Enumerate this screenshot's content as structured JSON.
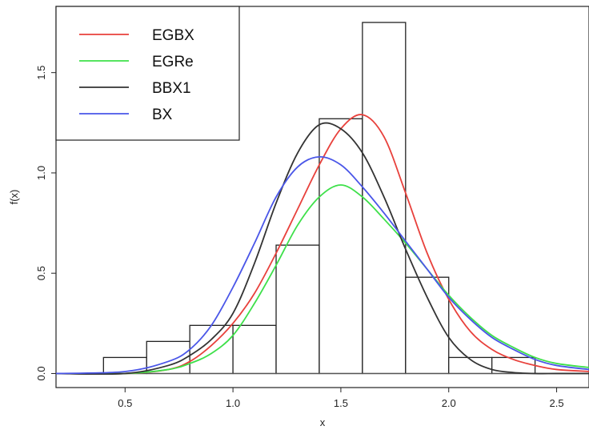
{
  "chart_data": {
    "type": "histogram-with-density-curves",
    "xlabel": "x",
    "ylabel": "f(x)",
    "xlim": [
      0.18,
      2.65
    ],
    "ylim": [
      -0.07,
      1.83
    ],
    "x_ticks": [
      0.5,
      1.0,
      1.5,
      2.0,
      2.5
    ],
    "x_tick_labels": [
      "0.5",
      "1.0",
      "1.5",
      "2.0",
      "2.5"
    ],
    "y_ticks": [
      0.0,
      0.5,
      1.0,
      1.5
    ],
    "y_tick_labels": [
      "0.0",
      "0.5",
      "1.0",
      "1.5"
    ],
    "grid": false,
    "legend_position": "top-left",
    "histogram": {
      "bins": [
        {
          "x0": 0.4,
          "x1": 0.6,
          "density": 0.08
        },
        {
          "x0": 0.6,
          "x1": 0.8,
          "density": 0.16
        },
        {
          "x0": 0.8,
          "x1": 1.0,
          "density": 0.24
        },
        {
          "x0": 1.0,
          "x1": 1.2,
          "density": 0.24
        },
        {
          "x0": 1.2,
          "x1": 1.4,
          "density": 0.64
        },
        {
          "x0": 1.4,
          "x1": 1.6,
          "density": 1.27
        },
        {
          "x0": 1.6,
          "x1": 1.8,
          "density": 1.75
        },
        {
          "x0": 1.8,
          "x1": 2.0,
          "density": 0.48
        },
        {
          "x0": 2.0,
          "x1": 2.2,
          "density": 0.08
        },
        {
          "x0": 2.2,
          "x1": 2.4,
          "density": 0.08
        }
      ]
    },
    "series": [
      {
        "name": "EGBX",
        "color": "#e8413c",
        "x": [
          0.18,
          0.5,
          0.7,
          0.8,
          0.9,
          1.0,
          1.1,
          1.2,
          1.3,
          1.4,
          1.5,
          1.6,
          1.7,
          1.8,
          1.9,
          2.0,
          2.1,
          2.2,
          2.3,
          2.4,
          2.5,
          2.65
        ],
        "y": [
          0.0,
          0.0,
          0.02,
          0.06,
          0.14,
          0.25,
          0.4,
          0.6,
          0.82,
          1.04,
          1.22,
          1.29,
          1.18,
          0.9,
          0.6,
          0.37,
          0.21,
          0.12,
          0.07,
          0.04,
          0.02,
          0.01
        ]
      },
      {
        "name": "EGRe",
        "color": "#3ee04a",
        "x": [
          0.18,
          0.5,
          0.7,
          0.8,
          0.9,
          1.0,
          1.1,
          1.2,
          1.3,
          1.4,
          1.5,
          1.6,
          1.7,
          1.8,
          1.9,
          2.0,
          2.1,
          2.2,
          2.3,
          2.4,
          2.5,
          2.65
        ],
        "y": [
          0.0,
          0.0,
          0.02,
          0.05,
          0.1,
          0.19,
          0.35,
          0.54,
          0.74,
          0.88,
          0.94,
          0.88,
          0.77,
          0.65,
          0.52,
          0.39,
          0.28,
          0.19,
          0.13,
          0.08,
          0.05,
          0.03
        ]
      },
      {
        "name": "BBX1",
        "color": "#333333",
        "x": [
          0.18,
          0.5,
          0.7,
          0.8,
          0.9,
          1.0,
          1.1,
          1.2,
          1.3,
          1.4,
          1.5,
          1.6,
          1.7,
          1.8,
          1.9,
          2.0,
          2.1,
          2.2,
          2.3,
          2.4,
          2.5,
          2.65
        ],
        "y": [
          0.0,
          0.0,
          0.04,
          0.09,
          0.17,
          0.3,
          0.55,
          0.85,
          1.1,
          1.24,
          1.22,
          1.1,
          0.88,
          0.62,
          0.38,
          0.18,
          0.07,
          0.02,
          0.005,
          0.0,
          0.0,
          0.0
        ]
      },
      {
        "name": "BX",
        "color": "#4a56e8",
        "x": [
          0.18,
          0.5,
          0.7,
          0.8,
          0.9,
          1.0,
          1.1,
          1.2,
          1.3,
          1.4,
          1.5,
          1.6,
          1.7,
          1.8,
          1.9,
          2.0,
          2.1,
          2.2,
          2.3,
          2.4,
          2.5,
          2.65
        ],
        "y": [
          0.0,
          0.01,
          0.06,
          0.12,
          0.24,
          0.43,
          0.65,
          0.88,
          1.03,
          1.08,
          1.04,
          0.93,
          0.8,
          0.66,
          0.52,
          0.38,
          0.27,
          0.18,
          0.12,
          0.07,
          0.04,
          0.02
        ]
      }
    ]
  }
}
